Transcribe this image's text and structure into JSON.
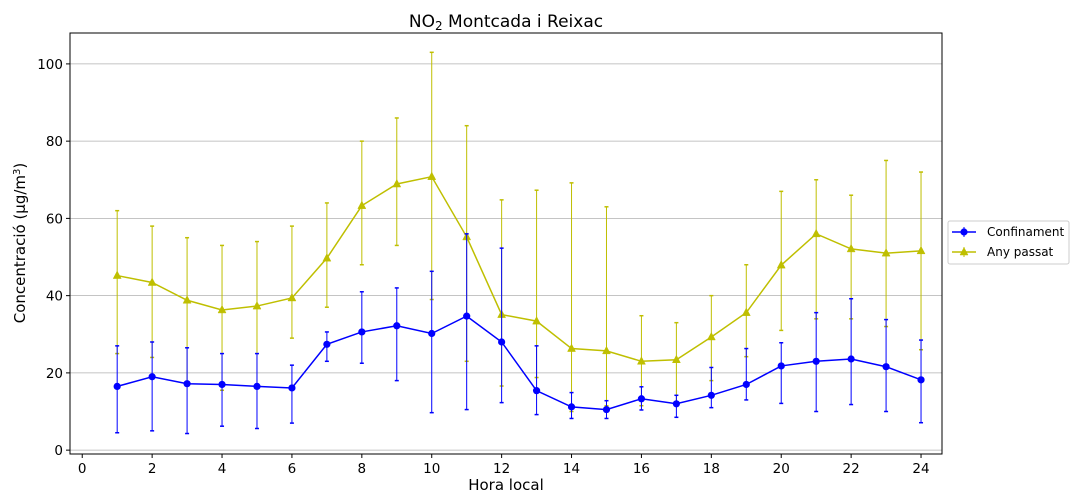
{
  "chart_data": {
    "type": "line",
    "title": {
      "main": "NO",
      "sub": "2",
      "rest": " Montcada i Reixac"
    },
    "xlabel": "Hora local",
    "ylabel": {
      "main": "Concentració (μg/m",
      "sup": "3",
      "end": ")"
    },
    "xlim": [
      -0.35,
      24.6
    ],
    "ylim": [
      -1,
      108
    ],
    "xticks": [
      0,
      2,
      4,
      6,
      8,
      10,
      12,
      14,
      16,
      18,
      20,
      22,
      24
    ],
    "yticks": [
      0,
      20,
      40,
      60,
      80,
      100
    ],
    "grid": "horizontal",
    "legend_position": "right",
    "x": [
      1,
      2,
      3,
      4,
      5,
      6,
      7,
      8,
      9,
      10,
      11,
      12,
      13,
      14,
      15,
      16,
      17,
      18,
      19,
      20,
      21,
      22,
      23,
      24
    ],
    "series": [
      {
        "name": "Confinament",
        "color": "#0000ff",
        "marker": "circle",
        "values": [
          16.5,
          19,
          17.2,
          17,
          16.5,
          16.1,
          27.4,
          30.6,
          32.2,
          30.2,
          34.7,
          28,
          15.4,
          11.2,
          10.5,
          13.3,
          12,
          14.2,
          17,
          21.8,
          23,
          23.6,
          21.6,
          18.2
        ],
        "err_low": [
          4.5,
          5,
          4.3,
          6.2,
          5.6,
          7,
          23,
          22.5,
          18,
          9.7,
          10.5,
          12.3,
          9.2,
          8.2,
          8.2,
          10.4,
          8.5,
          11,
          13,
          12.1,
          10,
          11.8,
          10,
          7.1
        ],
        "err_high": [
          27,
          28,
          26.5,
          25,
          25,
          22,
          30.6,
          41,
          42,
          46.3,
          56,
          52.3,
          27,
          14.9,
          12.8,
          16.4,
          14.2,
          21.4,
          26.3,
          27.8,
          35.6,
          39.2,
          33.8,
          28.5
        ]
      },
      {
        "name": "Any passat",
        "color": "#bfbf00",
        "marker": "triangle",
        "values": [
          45.2,
          43.4,
          38.8,
          36.3,
          37.3,
          39.4,
          49.7,
          63.3,
          68.9,
          70.8,
          55.2,
          35.1,
          33.4,
          26.3,
          25.7,
          23,
          23.4,
          29.3,
          35.6,
          47.9,
          56,
          52.1,
          51,
          51.6
        ],
        "err_low": [
          25,
          24,
          17,
          15.5,
          17,
          29,
          37,
          48,
          53,
          39,
          23,
          16.6,
          18.8,
          10,
          11.5,
          11.5,
          12.5,
          18,
          24.2,
          31,
          34,
          34,
          32,
          26
        ],
        "err_high": [
          62,
          58,
          55,
          53,
          54,
          58,
          64,
          80,
          86,
          103,
          84,
          64.8,
          67.3,
          69.2,
          63,
          34.8,
          33,
          40,
          48,
          67,
          70,
          66,
          75,
          72
        ]
      }
    ]
  }
}
